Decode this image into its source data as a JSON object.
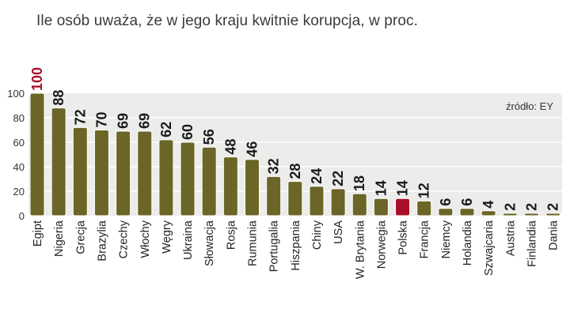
{
  "chart_data": {
    "type": "bar",
    "title": "Ile osób uważa, że w jego kraju kwitnie korupcja, w proc.",
    "source": "źródło: EY",
    "categories": [
      "Egipt",
      "Nigeria",
      "Grecja",
      "Brazylia",
      "Czechy",
      "Włochy",
      "Węgry",
      "Ukraina",
      "Słowacja",
      "Rosja",
      "Rumunia",
      "Portugalia",
      "Hiszpania",
      "Chiny",
      "USA",
      "W. Brytania",
      "Norwegia",
      "Polska",
      "Francja",
      "Niemcy",
      "Holandia",
      "Szwajcaria",
      "Austria",
      "Finlandia",
      "Dania"
    ],
    "values": [
      100,
      88,
      72,
      70,
      69,
      69,
      62,
      60,
      56,
      48,
      46,
      32,
      28,
      24,
      22,
      18,
      14,
      14,
      12,
      6,
      6,
      4,
      2,
      2,
      2
    ],
    "highlight": [
      "Egipt",
      "Polska"
    ],
    "ylim": [
      0,
      100
    ],
    "yticks": [
      0,
      20,
      40,
      60,
      80,
      100
    ],
    "xlabel": "",
    "ylabel": "",
    "grid": true,
    "colors": {
      "bar": "#6b6627",
      "bar_highlight": "#a8102a",
      "label_highlight": "#a8102a",
      "background": "#ececea",
      "gridline": "#ffffff"
    }
  }
}
